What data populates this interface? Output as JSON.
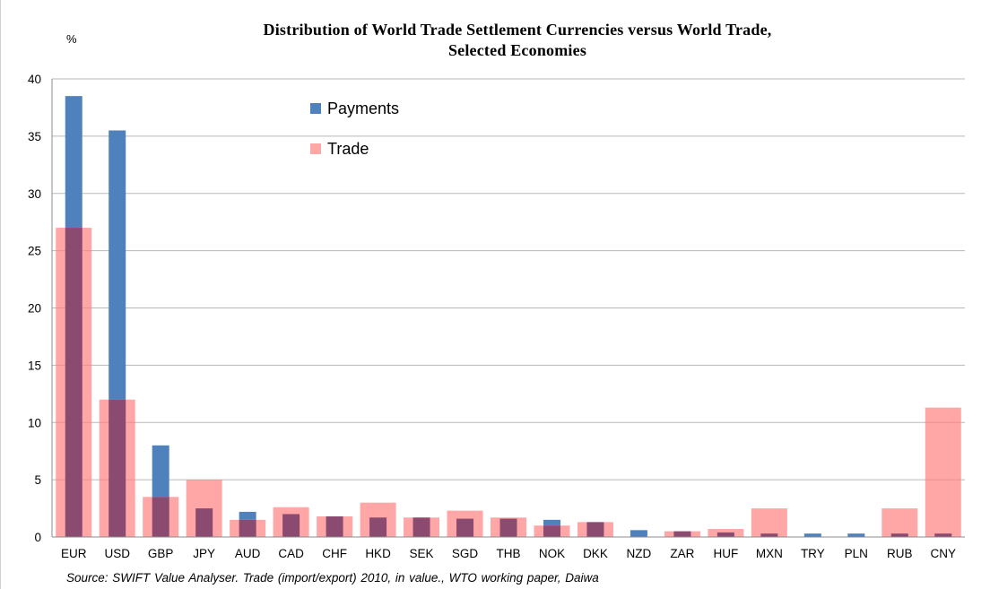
{
  "chart_data": {
    "type": "bar",
    "title_line1": "Distribution of World Trade Settlement Currencies versus World Trade,",
    "title_line2": "Selected Economies",
    "unit_label": "%",
    "source": "Source:  SWIFT Value Analyser. Trade (import/export)  2010, in value., WTO working paper, Daiwa",
    "categories": [
      "EUR",
      "USD",
      "GBP",
      "JPY",
      "AUD",
      "CAD",
      "CHF",
      "HKD",
      "SEK",
      "SGD",
      "THB",
      "NOK",
      "DKK",
      "NZD",
      "ZAR",
      "HUF",
      "MXN",
      "TRY",
      "PLN",
      "RUB",
      "CNY"
    ],
    "series": [
      {
        "name": "Payments",
        "color": "#4f81bd",
        "values": [
          38.5,
          35.5,
          8.0,
          2.5,
          2.2,
          2.0,
          1.8,
          1.7,
          1.7,
          1.6,
          1.6,
          1.5,
          1.3,
          0.6,
          0.5,
          0.4,
          0.3,
          0.3,
          0.3,
          0.3,
          0.3
        ]
      },
      {
        "name": "Trade",
        "color": "#ff8080",
        "values": [
          27.0,
          12.0,
          3.5,
          5.0,
          1.5,
          2.6,
          1.8,
          3.0,
          1.7,
          2.3,
          1.7,
          1.0,
          1.3,
          0.0,
          0.5,
          0.7,
          2.5,
          0.0,
          0.0,
          2.5,
          11.3
        ]
      }
    ],
    "ylim": [
      0,
      40
    ],
    "yticks": [
      0,
      5,
      10,
      15,
      20,
      25,
      30,
      35,
      40
    ],
    "grid": true,
    "legend_position": "top-center",
    "overlap_color": "#8b4a70"
  }
}
